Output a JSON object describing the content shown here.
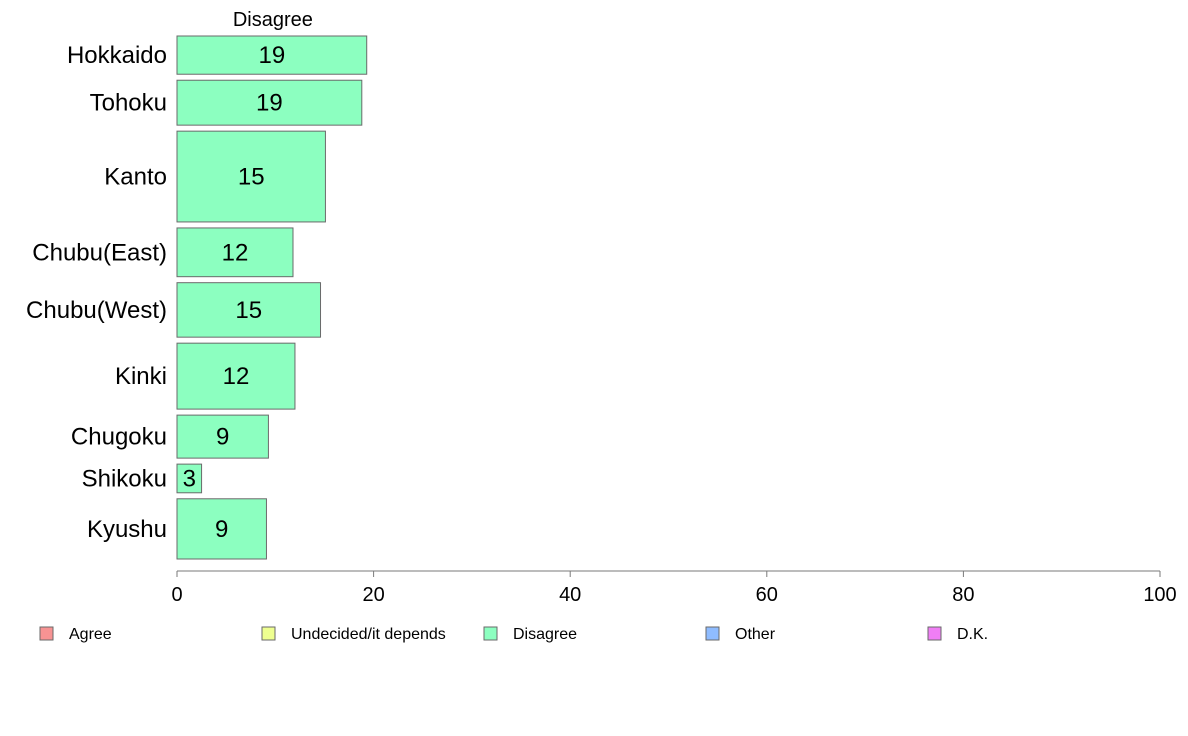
{
  "chart_data": {
    "type": "bar",
    "orientation": "horizontal",
    "panel_title": "Disagree",
    "categories": [
      "Hokkaido",
      "Tohoku",
      "Kanto",
      "Chubu(East)",
      "Chubu(West)",
      "Kinki",
      "Chugoku",
      "Shikoku",
      "Kyushu"
    ],
    "values": [
      19.3,
      18.8,
      15.1,
      11.8,
      14.6,
      12.0,
      9.3,
      2.5,
      9.1
    ],
    "value_labels": [
      "19",
      "19",
      "15",
      "12",
      "15",
      "12",
      "9",
      "3",
      "9"
    ],
    "bar_weights": [
      0.8,
      0.94,
      1.9,
      1.02,
      1.14,
      1.38,
      0.9,
      0.6,
      1.26
    ],
    "xlim": [
      0,
      100
    ],
    "xticks": [
      0,
      20,
      40,
      60,
      80,
      100
    ],
    "xtick_labels": [
      "0",
      "20",
      "40",
      "60",
      "80",
      "100"
    ],
    "xlabel": "",
    "ylabel": "",
    "grid": false,
    "bar_color": "#8cffc0",
    "bar_edge_color": "#6a6a6a",
    "legend_position": "bottom",
    "legend": [
      {
        "label": "Agree",
        "color": "#f79393"
      },
      {
        "label": "Undecided/it depends",
        "color": "#eeff90"
      },
      {
        "label": "Disagree",
        "color": "#8cffc0"
      },
      {
        "label": "Other",
        "color": "#8fbcff"
      },
      {
        "label": "D.K.",
        "color": "#f07ef5"
      }
    ]
  }
}
